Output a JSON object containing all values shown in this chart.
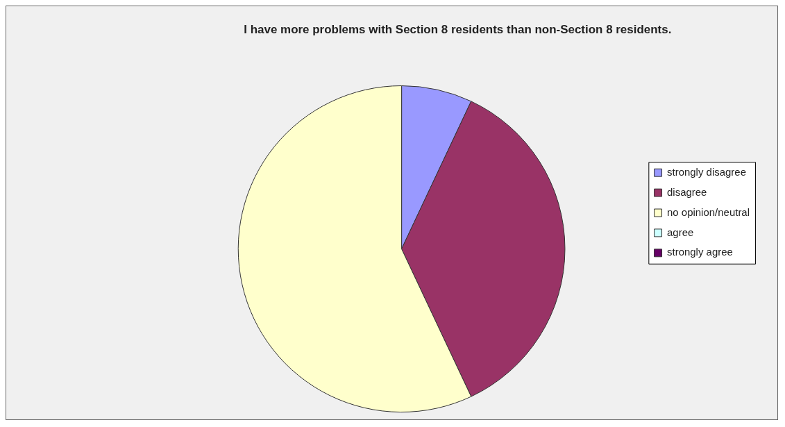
{
  "chart_data": {
    "type": "pie",
    "title": "I have more problems with Section 8 residents than non-Section 8 residents.",
    "categories": [
      "strongly disagree",
      "disagree",
      "no opinion/neutral",
      "agree",
      "strongly agree"
    ],
    "values": [
      7,
      36,
      57,
      0,
      0
    ],
    "colors": [
      "#9999ff",
      "#993366",
      "#ffffcc",
      "#ccffff",
      "#660066"
    ],
    "legend": "right"
  }
}
